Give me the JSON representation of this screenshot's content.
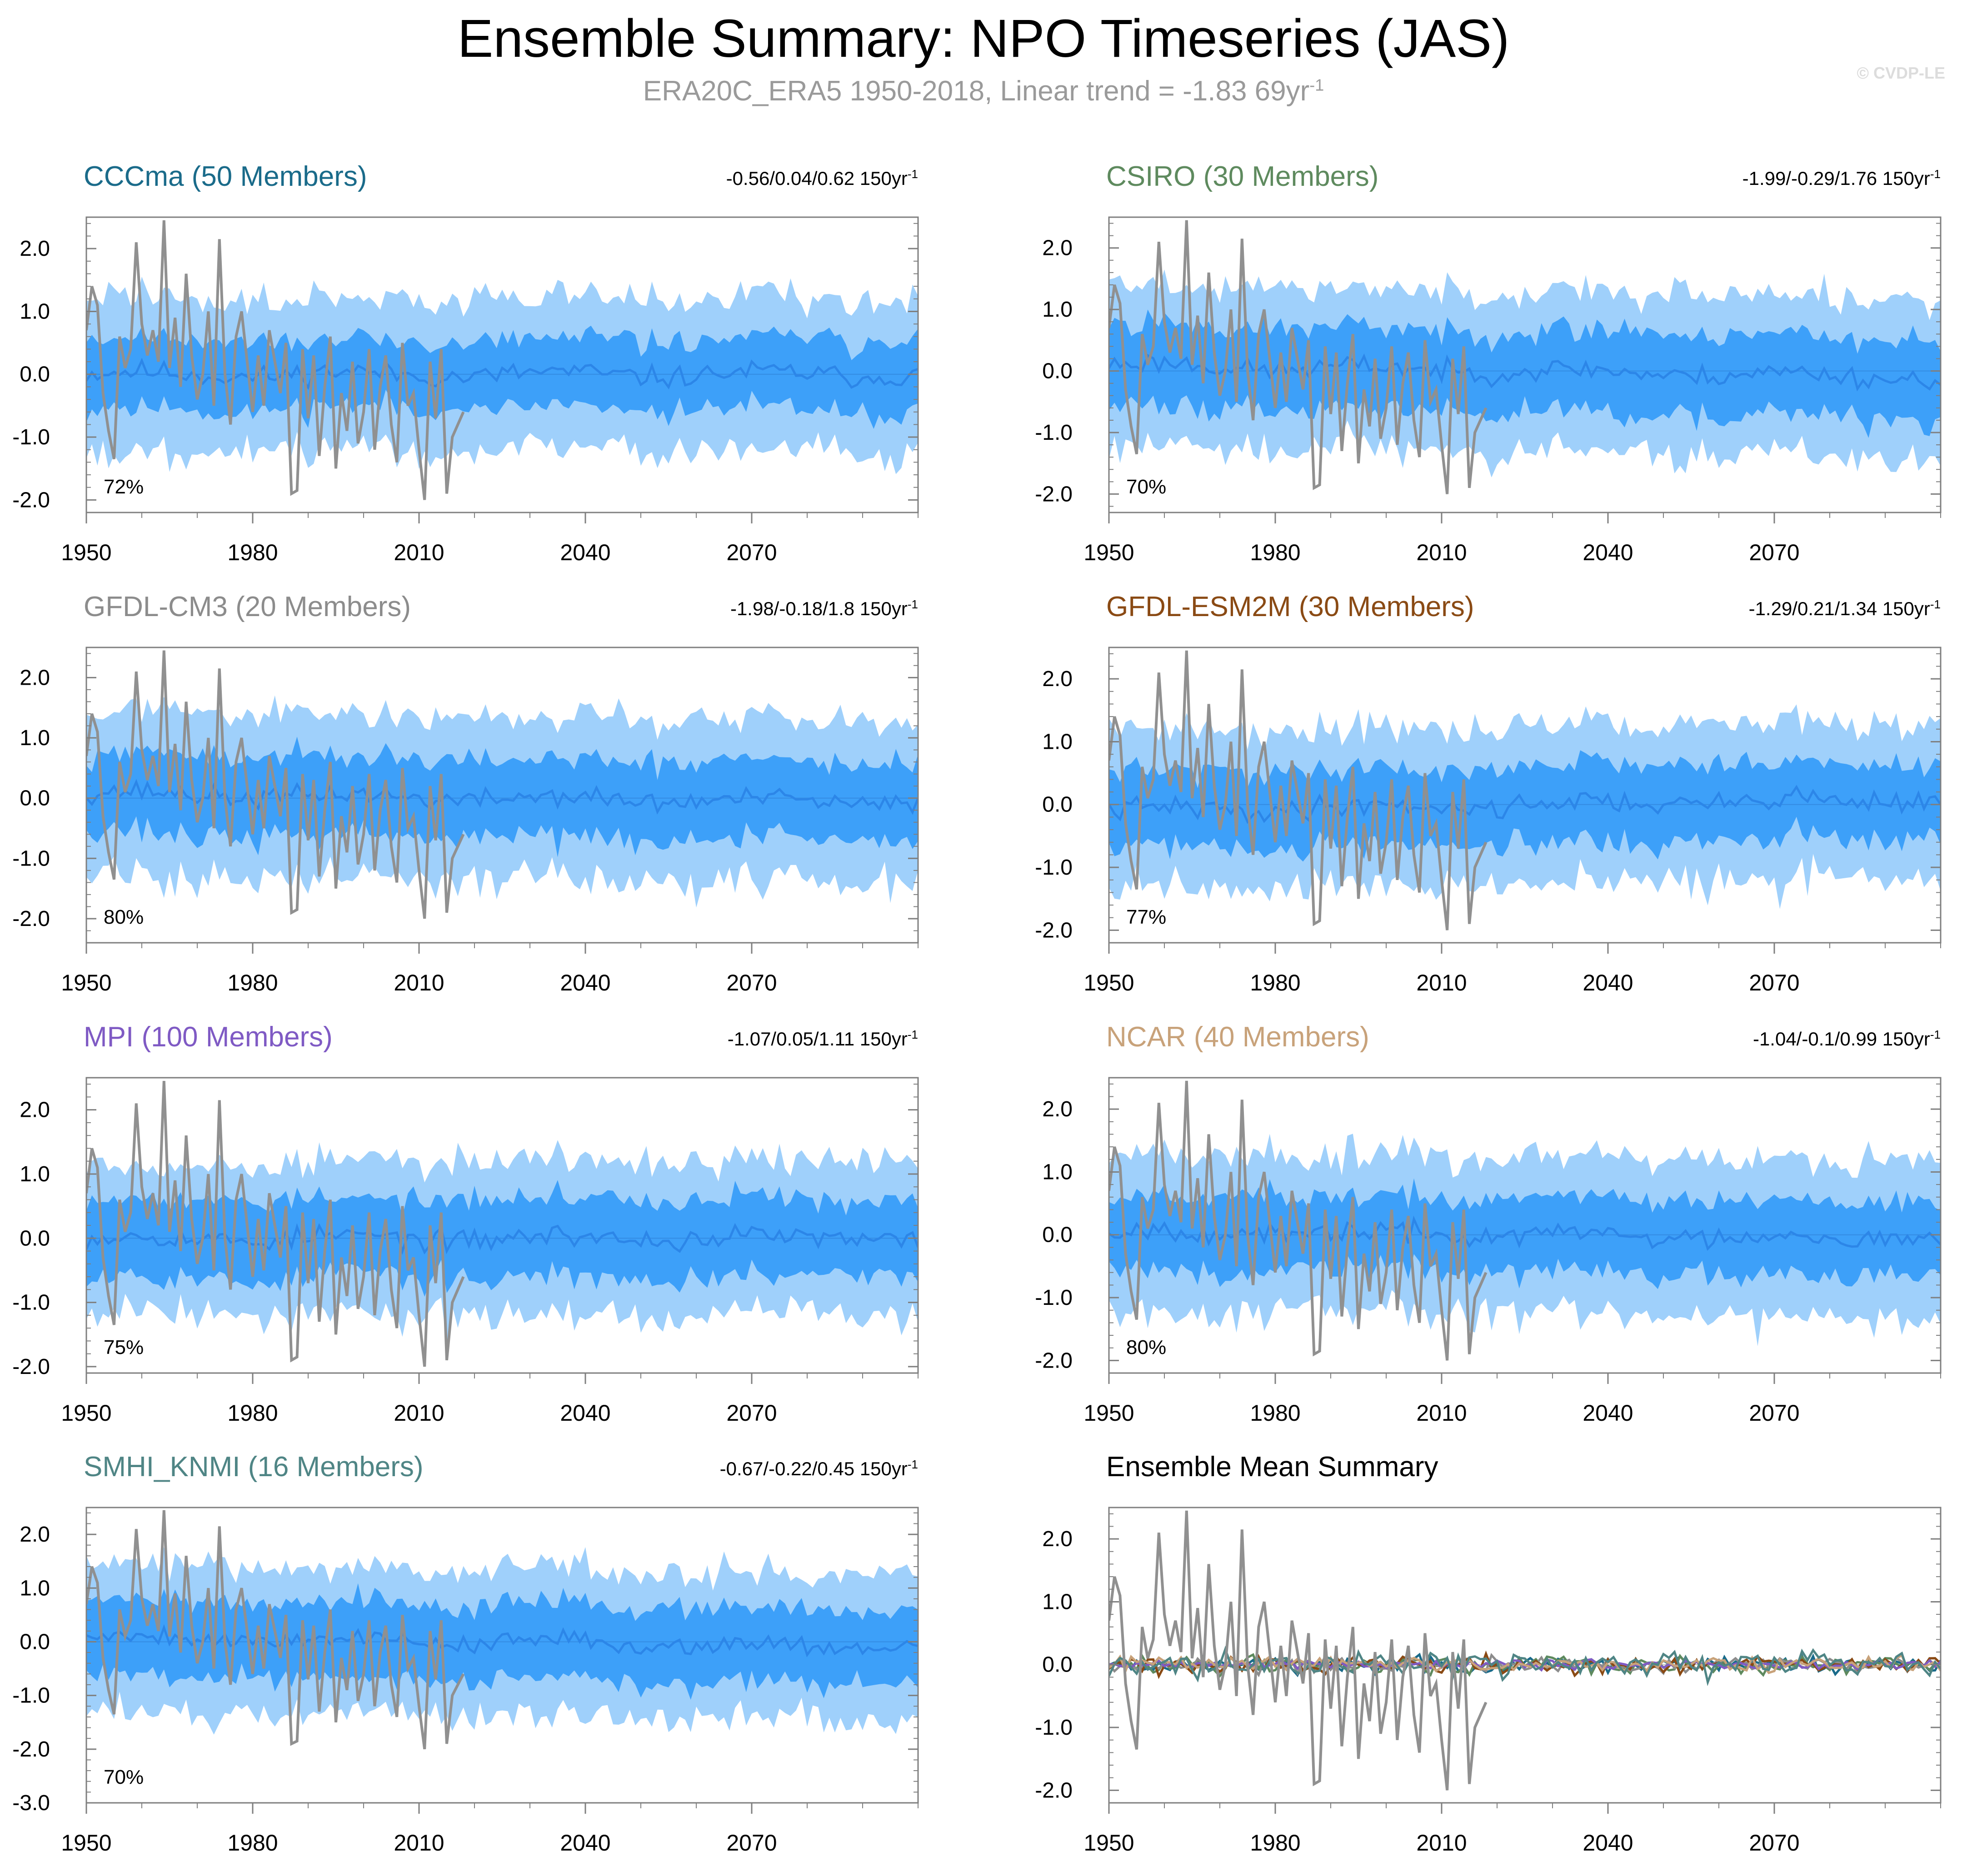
{
  "header": {
    "title": "Ensemble Summary: NPO Timeseries (JAS)",
    "subtitle_text": "ERA20C_ERA5 1950-2018, Linear trend = -1.83 69yr",
    "subtitle_exp": "-1",
    "watermark": "© CVDP-LE"
  },
  "colors": {
    "outer_band": "#9fd0fb",
    "inner_band": "#3da0f9",
    "ensemble_mean_line": "#2c86e8",
    "observations": "#909090",
    "axis": "#7f7f7f"
  },
  "chart_data": [
    {
      "id": "cccma",
      "type": "area",
      "title": "CCCma (50 Members)",
      "title_color": "#1a6b8a",
      "trend": "-0.56/0.04/0.62 150yr",
      "trend_exp": "-1",
      "pct": "72%",
      "ylim": [
        -2.2,
        2.5
      ],
      "yticks": [
        2.0,
        1.0,
        0.0,
        -1.0,
        -2.0
      ],
      "ytick_labels": [
        "2.0",
        "1.0",
        "0.0",
        "-1.0",
        "-2.0"
      ],
      "xlim": [
        1950,
        2100
      ],
      "xticks": [
        1950,
        1980,
        2010,
        2040,
        2070
      ],
      "xtick_labels": [
        "1950",
        "1980",
        "2010",
        "2040",
        "2070"
      ],
      "spread": {
        "inner": 0.55,
        "outer": 1.2
      },
      "trend_shift": 0.0,
      "seed": 11
    },
    {
      "id": "csiro",
      "type": "area",
      "title": "CSIRO (30 Members)",
      "title_color": "#5e8a5e",
      "trend": "-1.99/-0.29/1.76 150yr",
      "trend_exp": "-1",
      "pct": "70%",
      "ylim": [
        -2.3,
        2.5
      ],
      "yticks": [
        2.0,
        1.0,
        0.0,
        -1.0,
        -2.0
      ],
      "ytick_labels": [
        "2.0",
        "1.0",
        "0.0",
        "-1.0",
        "-2.0"
      ],
      "xlim": [
        1950,
        2100
      ],
      "xticks": [
        1950,
        1980,
        2010,
        2040,
        2070
      ],
      "xtick_labels": [
        "1950",
        "1980",
        "2010",
        "2040",
        "2070"
      ],
      "spread": {
        "inner": 0.65,
        "outer": 1.3
      },
      "trend_shift": -0.1,
      "seed": 23
    },
    {
      "id": "gfdl-cm3",
      "type": "area",
      "title": "GFDL-CM3 (20 Members)",
      "title_color": "#8c8c8c",
      "trend": "-1.98/-0.18/1.8 150yr",
      "trend_exp": "-1",
      "pct": "80%",
      "ylim": [
        -2.4,
        2.5
      ],
      "yticks": [
        2.0,
        1.0,
        0.0,
        -1.0,
        -2.0
      ],
      "ytick_labels": [
        "2.0",
        "1.0",
        "0.0",
        "-1.0",
        "-2.0"
      ],
      "xlim": [
        1950,
        2100
      ],
      "xticks": [
        1950,
        1980,
        2010,
        2040,
        2070
      ],
      "xtick_labels": [
        "1950",
        "1980",
        "2010",
        "2040",
        "2070"
      ],
      "spread": {
        "inner": 0.65,
        "outer": 1.35
      },
      "trend_shift": -0.08,
      "seed": 37
    },
    {
      "id": "gfdl-esm2m",
      "type": "area",
      "title": "GFDL-ESM2M (30 Members)",
      "title_color": "#8a4a14",
      "trend": "-1.29/0.21/1.34 150yr",
      "trend_exp": "-1",
      "pct": "77%",
      "ylim": [
        -2.2,
        2.5
      ],
      "yticks": [
        2.0,
        1.0,
        0.0,
        -1.0,
        -2.0
      ],
      "ytick_labels": [
        "2.0",
        "1.0",
        "0.0",
        "-1.0",
        "-2.0"
      ],
      "xlim": [
        1950,
        2100
      ],
      "xticks": [
        1950,
        1980,
        2010,
        2040,
        2070
      ],
      "xtick_labels": [
        "1950",
        "1980",
        "2010",
        "2040",
        "2070"
      ],
      "spread": {
        "inner": 0.6,
        "outer": 1.25
      },
      "trend_shift": 0.1,
      "seed": 41
    },
    {
      "id": "mpi",
      "type": "area",
      "title": "MPI (100 Members)",
      "title_color": "#7f5ac4",
      "trend": "-1.07/0.05/1.11 150yr",
      "trend_exp": "-1",
      "pct": "75%",
      "ylim": [
        -2.1,
        2.5
      ],
      "yticks": [
        2.0,
        1.0,
        0.0,
        -1.0,
        -2.0
      ],
      "ytick_labels": [
        "2.0",
        "1.0",
        "0.0",
        "-1.0",
        "-2.0"
      ],
      "xlim": [
        1950,
        2100
      ],
      "xticks": [
        1950,
        1980,
        2010,
        2040,
        2070
      ],
      "xtick_labels": [
        "1950",
        "1980",
        "2010",
        "2040",
        "2070"
      ],
      "spread": {
        "inner": 0.6,
        "outer": 1.2
      },
      "trend_shift": 0.0,
      "seed": 53
    },
    {
      "id": "ncar",
      "type": "area",
      "title": "NCAR (40 Members)",
      "title_color": "#c8a27a",
      "trend": "-1.04/-0.1/0.99 150yr",
      "trend_exp": "-1",
      "pct": "80%",
      "ylim": [
        -2.2,
        2.5
      ],
      "yticks": [
        2.0,
        1.0,
        0.0,
        -1.0,
        -2.0
      ],
      "ytick_labels": [
        "2.0",
        "1.0",
        "0.0",
        "-1.0",
        "-2.0"
      ],
      "xlim": [
        1950,
        2100
      ],
      "xticks": [
        1950,
        1980,
        2010,
        2040,
        2070
      ],
      "xtick_labels": [
        "1950",
        "1980",
        "2010",
        "2040",
        "2070"
      ],
      "spread": {
        "inner": 0.6,
        "outer": 1.25
      },
      "trend_shift": -0.05,
      "seed": 67
    },
    {
      "id": "smhi-knmi",
      "type": "area",
      "title": "SMHI_KNMI (16 Members)",
      "title_color": "#4f8585",
      "trend": "-0.67/-0.22/0.45 150yr",
      "trend_exp": "-1",
      "pct": "70%",
      "ylim": [
        -3.0,
        2.5
      ],
      "yticks": [
        2.0,
        1.0,
        0.0,
        -1.0,
        -2.0,
        -3.0
      ],
      "ytick_labels": [
        "2.0",
        "1.0",
        "0.0",
        "-1.0",
        "-2.0",
        "-3.0"
      ],
      "xlim": [
        1950,
        2100
      ],
      "xticks": [
        1950,
        1980,
        2010,
        2040,
        2070
      ],
      "xtick_labels": [
        "1950",
        "1980",
        "2010",
        "2040",
        "2070"
      ],
      "spread": {
        "inner": 0.7,
        "outer": 1.35
      },
      "trend_shift": -0.1,
      "seed": 79
    },
    {
      "id": "ensemble-mean-summary",
      "type": "line",
      "title": "Ensemble Mean Summary",
      "title_color": "#000000",
      "trend": "",
      "trend_exp": "",
      "pct": "",
      "ylim": [
        -2.2,
        2.5
      ],
      "yticks": [
        2.0,
        1.0,
        0.0,
        -1.0,
        -2.0
      ],
      "ytick_labels": [
        "2.0",
        "1.0",
        "0.0",
        "-1.0",
        "-2.0"
      ],
      "xlim": [
        1950,
        2100
      ],
      "xticks": [
        1950,
        1980,
        2010,
        2040,
        2070
      ],
      "xtick_labels": [
        "1950",
        "1980",
        "2010",
        "2040",
        "2070"
      ],
      "series": [
        {
          "name": "CCCma",
          "color": "#1a6b8a",
          "amp": 0.12,
          "seed": 111
        },
        {
          "name": "CSIRO",
          "color": "#5e8a5e",
          "amp": 0.13,
          "seed": 122
        },
        {
          "name": "GFDL-CM3",
          "color": "#8c8c8c",
          "amp": 0.12,
          "seed": 133
        },
        {
          "name": "GFDL-ESM2M",
          "color": "#8a4a14",
          "amp": 0.13,
          "seed": 144
        },
        {
          "name": "MPI",
          "color": "#7f5ac4",
          "amp": 0.07,
          "seed": 155
        },
        {
          "name": "NCAR",
          "color": "#c8a27a",
          "amp": 0.11,
          "seed": 166
        },
        {
          "name": "SMHI_KNMI",
          "color": "#4f8585",
          "amp": 0.2,
          "seed": 177
        }
      ]
    }
  ],
  "observations": {
    "name": "ERA20C_ERA5",
    "years": [
      1950,
      1951,
      1952,
      1953,
      1954,
      1955,
      1956,
      1957,
      1958,
      1959,
      1960,
      1961,
      1962,
      1963,
      1964,
      1965,
      1966,
      1967,
      1968,
      1969,
      1970,
      1971,
      1972,
      1973,
      1974,
      1975,
      1976,
      1977,
      1978,
      1979,
      1980,
      1981,
      1982,
      1983,
      1984,
      1985,
      1986,
      1987,
      1988,
      1989,
      1990,
      1991,
      1992,
      1993,
      1994,
      1995,
      1996,
      1997,
      1998,
      1999,
      2000,
      2001,
      2002,
      2003,
      2004,
      2005,
      2006,
      2007,
      2008,
      2009,
      2010,
      2011,
      2012,
      2013,
      2014,
      2015,
      2016,
      2017,
      2018
    ],
    "values": [
      0.7,
      1.4,
      1.1,
      -0.3,
      -0.9,
      -1.35,
      0.6,
      0.1,
      0.4,
      2.1,
      0.8,
      0.3,
      0.7,
      0.2,
      2.45,
      0.1,
      0.9,
      -0.2,
      1.6,
      0.3,
      -0.4,
      0.0,
      1.0,
      -0.5,
      2.15,
      0.0,
      -0.8,
      0.6,
      1.0,
      0.2,
      -0.6,
      0.3,
      -0.5,
      0.7,
      0.2,
      -0.3,
      0.5,
      -1.9,
      -1.85,
      0.4,
      -0.7,
      0.3,
      -1.3,
      -0.2,
      0.6,
      -1.5,
      -0.3,
      -0.9,
      0.2,
      -1.1,
      -0.6,
      0.4,
      -1.2,
      -0.2,
      0.3,
      -0.8,
      -1.4,
      0.5,
      -0.5,
      -0.3,
      -1.2,
      -2.0,
      0.2,
      -0.7,
      0.4,
      -1.9,
      -1.0,
      -0.8,
      -0.6
    ]
  }
}
